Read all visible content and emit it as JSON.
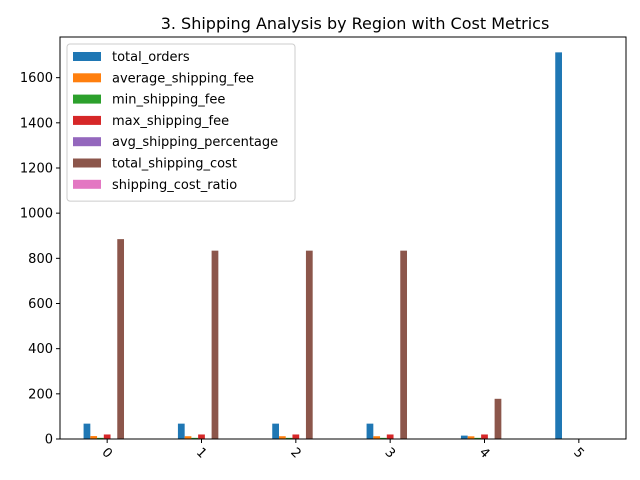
{
  "chart_data": {
    "type": "bar",
    "title": "3. Shipping Analysis by Region with Cost Metrics",
    "xlabel": "",
    "ylabel": "",
    "categories": [
      "0",
      "1",
      "2",
      "3",
      "4",
      "5"
    ],
    "ylim": [
      0,
      1780
    ],
    "yticks": [
      0,
      200,
      400,
      600,
      800,
      1000,
      1200,
      1400,
      1600
    ],
    "grid": false,
    "legend_position": "top-left",
    "series": [
      {
        "name": "total_orders",
        "color": "#1f77b4",
        "values": [
          68,
          68,
          68,
          68,
          15,
          1712
        ]
      },
      {
        "name": "average_shipping_fee",
        "color": "#ff7f0e",
        "values": [
          13,
          12.3,
          12.3,
          12.3,
          11.9,
          0
        ]
      },
      {
        "name": "min_shipping_fee",
        "color": "#2ca02c",
        "values": [
          5,
          5,
          5,
          5,
          5,
          0
        ]
      },
      {
        "name": "max_shipping_fee",
        "color": "#d62728",
        "values": [
          20,
          20,
          20,
          20,
          20,
          0
        ]
      },
      {
        "name": "avg_shipping_percentage",
        "color": "#9467bd",
        "values": [
          2,
          2,
          2,
          2,
          2,
          0
        ]
      },
      {
        "name": "total_shipping_cost",
        "color": "#8c564b",
        "values": [
          885,
          834,
          834,
          834,
          178,
          0
        ]
      },
      {
        "name": "shipping_cost_ratio",
        "color": "#e377c2",
        "values": [
          0.5,
          0.5,
          0.5,
          0.5,
          0.5,
          0
        ]
      }
    ]
  }
}
